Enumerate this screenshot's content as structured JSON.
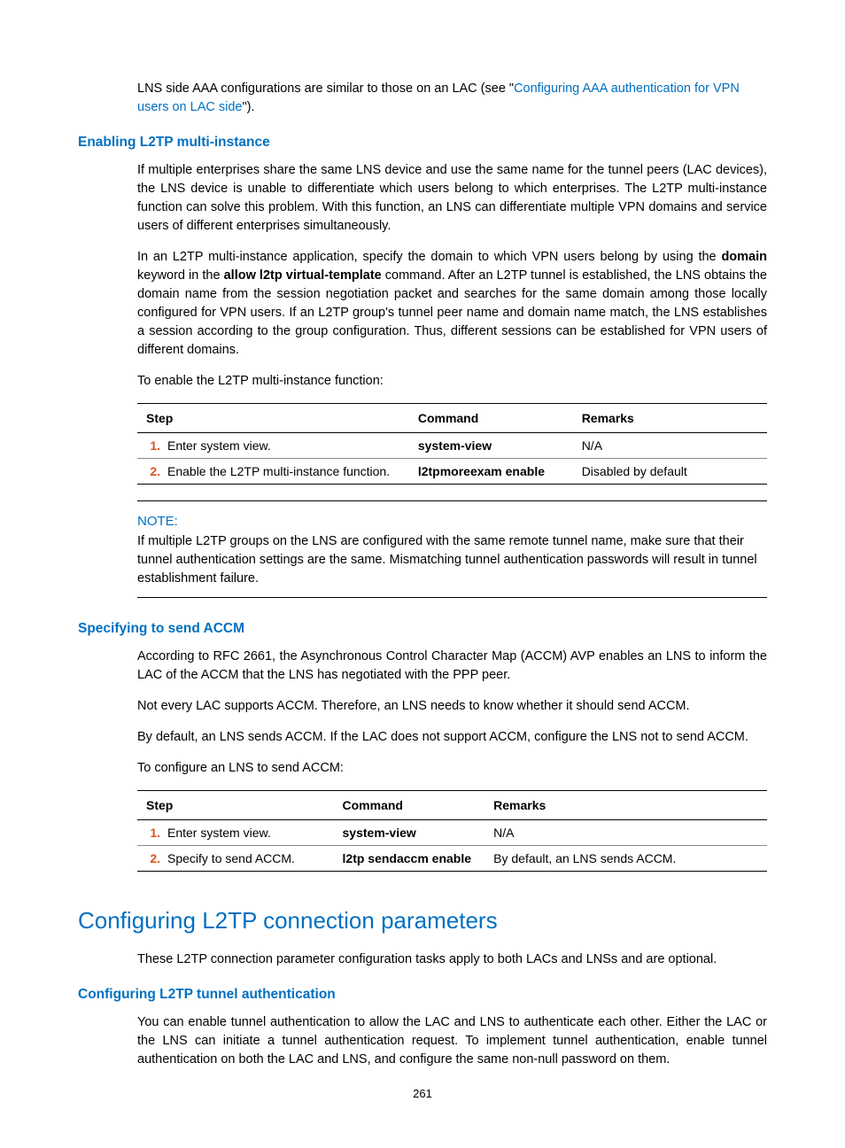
{
  "intro": {
    "sentence_pre": "LNS side AAA configurations are similar to those on an LAC (see \"",
    "link_text": "Configuring AAA authentication for VPN users on LAC side",
    "sentence_post": "\")."
  },
  "section1": {
    "heading": "Enabling L2TP multi-instance",
    "p1": "If multiple enterprises share the same LNS device and use the same name for the tunnel peers (LAC devices), the LNS device is unable to differentiate which users belong to which enterprises. The L2TP multi-instance function can solve this problem. With this function, an LNS can differentiate multiple VPN domains and service users of different enterprises simultaneously.",
    "p2_pre": "In an L2TP multi-instance application, specify the domain to which VPN users belong by using the ",
    "p2_b1": "domain",
    "p2_mid": " keyword in the ",
    "p2_b2": "allow l2tp virtual-template",
    "p2_post": " command. After an L2TP tunnel is established, the LNS obtains the domain name from the session negotiation packet and searches for the same domain among those locally configured for VPN users. If an L2TP group's tunnel peer name and domain name match, the LNS establishes a session according to the group configuration. Thus, different sessions can be established for VPN users of different domains.",
    "p3": "To enable the L2TP multi-instance function:",
    "table": {
      "headers": {
        "step": "Step",
        "command": "Command",
        "remarks": "Remarks"
      },
      "rows": [
        {
          "num": "1.",
          "desc": "Enter system view.",
          "cmd": "system-view",
          "rem": "N/A"
        },
        {
          "num": "2.",
          "desc": "Enable the L2TP multi-instance function.",
          "cmd": "l2tpmoreexam enable",
          "rem": "Disabled by default"
        }
      ]
    },
    "note_label": "NOTE:",
    "note_text": "If multiple L2TP groups on the LNS are configured with the same remote tunnel name, make sure that their tunnel authentication settings are the same. Mismatching tunnel authentication passwords will result in tunnel establishment failure."
  },
  "section2": {
    "heading": "Specifying to send ACCM",
    "p1": "According to RFC 2661, the Asynchronous Control Character Map (ACCM) AVP enables an LNS to inform the LAC of the ACCM that the LNS has negotiated with the PPP peer.",
    "p2": "Not every LAC supports ACCM. Therefore, an LNS needs to know whether it should send ACCM.",
    "p3": "By default, an LNS sends ACCM. If the LAC does not support ACCM, configure the LNS not to send ACCM.",
    "p4": "To configure an LNS to send ACCM:",
    "table": {
      "headers": {
        "step": "Step",
        "command": "Command",
        "remarks": "Remarks"
      },
      "rows": [
        {
          "num": "1.",
          "desc": "Enter system view.",
          "cmd": "system-view",
          "rem": "N/A"
        },
        {
          "num": "2.",
          "desc": "Specify to send ACCM.",
          "cmd": "l2tp sendaccm enable",
          "rem": "By default, an LNS sends ACCM."
        }
      ]
    }
  },
  "section3": {
    "heading": "Configuring L2TP connection parameters",
    "p1": "These L2TP connection parameter configuration tasks apply to both LACs and LNSs and are optional.",
    "sub_heading": "Configuring L2TP tunnel authentication",
    "p2": "You can enable tunnel authentication to allow the LAC and LNS to authenticate each other. Either the LAC or the LNS can initiate a tunnel authentication request. To implement tunnel authentication, enable tunnel authentication on both the LAC and LNS, and configure the same non-null password on them."
  },
  "page_number": "261",
  "colors": {
    "link": "#0070c0",
    "heading": "#0070c0",
    "stepnum": "#d9531e"
  }
}
